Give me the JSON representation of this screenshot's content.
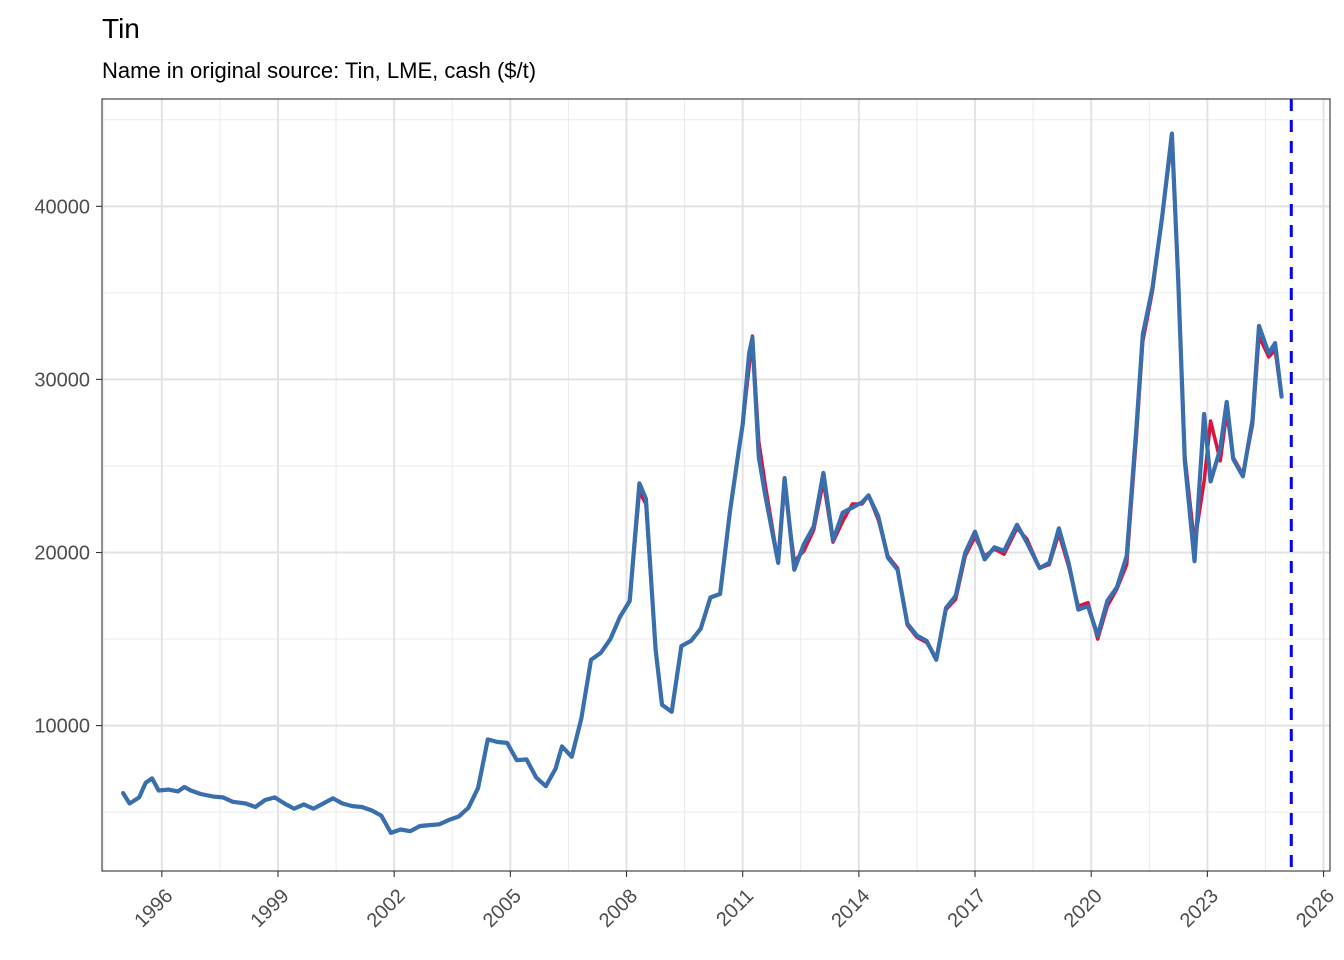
{
  "chart_data": {
    "type": "line",
    "title": "Tin",
    "subtitle": "Name in original source: Tin, LME, cash ($/t)",
    "xlabel": "",
    "ylabel": "",
    "x_range": [
      "1994-06-15",
      "2026-03-01"
    ],
    "ylim": [
      1600,
      46200
    ],
    "x_ticks": [
      "1996",
      "1999",
      "2002",
      "2005",
      "2008",
      "2011",
      "2014",
      "2017",
      "2020",
      "2023",
      "2026"
    ],
    "y_ticks": [
      "10000",
      "20000",
      "30000",
      "40000"
    ],
    "grid": true,
    "legend": "none",
    "vline": {
      "x": "2025-03-01",
      "style": "dashed",
      "color": "#0000ff"
    },
    "series": [
      {
        "color": "#dc143c",
        "points": [
          [
            "1995-01",
            6100
          ],
          [
            "1995-03",
            5500
          ],
          [
            "1995-06",
            5850
          ],
          [
            "1995-08",
            6700
          ],
          [
            "1995-10",
            6950
          ],
          [
            "1995-12",
            6250
          ],
          [
            "1996-03",
            6300
          ],
          [
            "1996-06",
            6200
          ],
          [
            "1996-08",
            6450
          ],
          [
            "1996-10",
            6250
          ],
          [
            "1997-01",
            6050
          ],
          [
            "1997-05",
            5900
          ],
          [
            "1997-08",
            5850
          ],
          [
            "1997-11",
            5600
          ],
          [
            "1998-03",
            5500
          ],
          [
            "1998-06",
            5300
          ],
          [
            "1998-09",
            5700
          ],
          [
            "1998-12",
            5850
          ],
          [
            "1999-03",
            5500
          ],
          [
            "1999-06",
            5200
          ],
          [
            "1999-09",
            5450
          ],
          [
            "1999-12",
            5200
          ],
          [
            "2000-03",
            5500
          ],
          [
            "2000-06",
            5800
          ],
          [
            "2000-09",
            5500
          ],
          [
            "2000-12",
            5350
          ],
          [
            "2001-03",
            5300
          ],
          [
            "2001-06",
            5100
          ],
          [
            "2001-09",
            4800
          ],
          [
            "2001-12",
            3800
          ],
          [
            "2002-03",
            4000
          ],
          [
            "2002-06",
            3900
          ],
          [
            "2002-09",
            4200
          ],
          [
            "2002-12",
            4250
          ],
          [
            "2003-03",
            4300
          ],
          [
            "2003-06",
            4550
          ],
          [
            "2003-09",
            4750
          ],
          [
            "2003-12",
            5250
          ],
          [
            "2004-03",
            6400
          ],
          [
            "2004-06",
            9200
          ],
          [
            "2004-09",
            9050
          ],
          [
            "2004-12",
            9000
          ],
          [
            "2005-03",
            8000
          ],
          [
            "2005-06",
            8050
          ],
          [
            "2005-09",
            7000
          ],
          [
            "2005-12",
            6500
          ],
          [
            "2006-03",
            7500
          ],
          [
            "2006-05",
            8800
          ],
          [
            "2006-08",
            8200
          ],
          [
            "2006-11",
            10400
          ],
          [
            "2007-02",
            13800
          ],
          [
            "2007-05",
            14200
          ],
          [
            "2007-08",
            15000
          ],
          [
            "2007-11",
            16300
          ],
          [
            "2008-02",
            17200
          ],
          [
            "2008-05",
            23500
          ],
          [
            "2008-07",
            22800
          ],
          [
            "2008-10",
            14400
          ],
          [
            "2008-12",
            11200
          ],
          [
            "2009-03",
            10800
          ],
          [
            "2009-06",
            14600
          ],
          [
            "2009-09",
            14900
          ],
          [
            "2009-12",
            15600
          ],
          [
            "2010-03",
            17400
          ],
          [
            "2010-06",
            17600
          ],
          [
            "2010-09",
            22300
          ],
          [
            "2010-12",
            26200
          ],
          [
            "2011-01",
            27400
          ],
          [
            "2011-03",
            30700
          ],
          [
            "2011-04",
            32500
          ],
          [
            "2011-06",
            26400
          ],
          [
            "2011-08",
            23900
          ],
          [
            "2011-12",
            19400
          ],
          [
            "2012-02",
            23900
          ],
          [
            "2012-05",
            19500
          ],
          [
            "2012-08",
            20100
          ],
          [
            "2012-11",
            21300
          ],
          [
            "2013-02",
            24100
          ],
          [
            "2013-05",
            20600
          ],
          [
            "2013-08",
            21800
          ],
          [
            "2013-11",
            22800
          ],
          [
            "2014-02",
            22800
          ],
          [
            "2014-04",
            23300
          ],
          [
            "2014-07",
            21900
          ],
          [
            "2014-10",
            19800
          ],
          [
            "2015-01",
            19100
          ],
          [
            "2015-04",
            15800
          ],
          [
            "2015-07",
            15100
          ],
          [
            "2015-10",
            14800
          ],
          [
            "2016-01",
            13900
          ],
          [
            "2016-04",
            16700
          ],
          [
            "2016-07",
            17300
          ],
          [
            "2016-10",
            19800
          ],
          [
            "2017-01",
            20900
          ],
          [
            "2017-04",
            19800
          ],
          [
            "2017-07",
            20200
          ],
          [
            "2017-10",
            19900
          ],
          [
            "2018-02",
            21400
          ],
          [
            "2018-05",
            20800
          ],
          [
            "2018-09",
            19100
          ],
          [
            "2018-12",
            19300
          ],
          [
            "2019-03",
            21100
          ],
          [
            "2019-06",
            19200
          ],
          [
            "2019-09",
            16900
          ],
          [
            "2019-12",
            17100
          ],
          [
            "2020-03",
            15000
          ],
          [
            "2020-06",
            16900
          ],
          [
            "2020-09",
            17900
          ],
          [
            "2020-12",
            19300
          ],
          [
            "2021-03",
            26700
          ],
          [
            "2021-05",
            32200
          ],
          [
            "2021-08",
            35100
          ],
          [
            "2021-11",
            39500
          ],
          [
            "2022-02",
            43800
          ],
          [
            "2022-04",
            35800
          ],
          [
            "2022-06",
            25600
          ],
          [
            "2022-09",
            20500
          ],
          [
            "2022-12",
            24100
          ],
          [
            "2023-02",
            27600
          ],
          [
            "2023-05",
            25300
          ],
          [
            "2023-07",
            28100
          ],
          [
            "2023-09",
            25500
          ],
          [
            "2023-12",
            24500
          ],
          [
            "2024-03",
            27400
          ],
          [
            "2024-05",
            32500
          ],
          [
            "2024-08",
            31300
          ],
          [
            "2024-10",
            31700
          ],
          [
            "2024-12",
            29000
          ]
        ]
      },
      {
        "color": "#3a6fad",
        "points": [
          [
            "1995-01",
            6100
          ],
          [
            "1995-03",
            5500
          ],
          [
            "1995-06",
            5850
          ],
          [
            "1995-08",
            6700
          ],
          [
            "1995-10",
            6950
          ],
          [
            "1995-12",
            6250
          ],
          [
            "1996-03",
            6300
          ],
          [
            "1996-06",
            6200
          ],
          [
            "1996-08",
            6450
          ],
          [
            "1996-10",
            6250
          ],
          [
            "1997-01",
            6050
          ],
          [
            "1997-05",
            5900
          ],
          [
            "1997-08",
            5850
          ],
          [
            "1997-11",
            5600
          ],
          [
            "1998-03",
            5500
          ],
          [
            "1998-06",
            5300
          ],
          [
            "1998-09",
            5700
          ],
          [
            "1998-12",
            5850
          ],
          [
            "1999-03",
            5500
          ],
          [
            "1999-06",
            5200
          ],
          [
            "1999-09",
            5450
          ],
          [
            "1999-12",
            5200
          ],
          [
            "2000-03",
            5500
          ],
          [
            "2000-06",
            5800
          ],
          [
            "2000-09",
            5500
          ],
          [
            "2000-12",
            5350
          ],
          [
            "2001-03",
            5300
          ],
          [
            "2001-06",
            5100
          ],
          [
            "2001-09",
            4800
          ],
          [
            "2001-12",
            3800
          ],
          [
            "2002-03",
            4000
          ],
          [
            "2002-06",
            3900
          ],
          [
            "2002-09",
            4200
          ],
          [
            "2002-12",
            4250
          ],
          [
            "2003-03",
            4300
          ],
          [
            "2003-06",
            4550
          ],
          [
            "2003-09",
            4750
          ],
          [
            "2003-12",
            5250
          ],
          [
            "2004-03",
            6400
          ],
          [
            "2004-06",
            9200
          ],
          [
            "2004-09",
            9050
          ],
          [
            "2004-12",
            9000
          ],
          [
            "2005-03",
            8000
          ],
          [
            "2005-06",
            8050
          ],
          [
            "2005-09",
            7000
          ],
          [
            "2005-12",
            6500
          ],
          [
            "2006-03",
            7500
          ],
          [
            "2006-05",
            8800
          ],
          [
            "2006-08",
            8200
          ],
          [
            "2006-11",
            10400
          ],
          [
            "2007-02",
            13800
          ],
          [
            "2007-05",
            14200
          ],
          [
            "2007-08",
            15000
          ],
          [
            "2007-11",
            16300
          ],
          [
            "2008-02",
            17200
          ],
          [
            "2008-05",
            24000
          ],
          [
            "2008-07",
            23100
          ],
          [
            "2008-10",
            14400
          ],
          [
            "2008-12",
            11200
          ],
          [
            "2009-03",
            10800
          ],
          [
            "2009-06",
            14600
          ],
          [
            "2009-09",
            14900
          ],
          [
            "2009-12",
            15600
          ],
          [
            "2010-03",
            17400
          ],
          [
            "2010-06",
            17600
          ],
          [
            "2010-09",
            22300
          ],
          [
            "2010-12",
            26200
          ],
          [
            "2011-01",
            27400
          ],
          [
            "2011-03",
            31500
          ],
          [
            "2011-04",
            32400
          ],
          [
            "2011-06",
            25500
          ],
          [
            "2011-08",
            23300
          ],
          [
            "2011-12",
            19400
          ],
          [
            "2012-02",
            24300
          ],
          [
            "2012-05",
            19000
          ],
          [
            "2012-08",
            20500
          ],
          [
            "2012-11",
            21500
          ],
          [
            "2013-02",
            24600
          ],
          [
            "2013-05",
            20700
          ],
          [
            "2013-08",
            22300
          ],
          [
            "2013-11",
            22600
          ],
          [
            "2014-02",
            22900
          ],
          [
            "2014-04",
            23300
          ],
          [
            "2014-07",
            22100
          ],
          [
            "2014-10",
            19700
          ],
          [
            "2015-01",
            19000
          ],
          [
            "2015-04",
            15900
          ],
          [
            "2015-07",
            15200
          ],
          [
            "2015-10",
            14900
          ],
          [
            "2016-01",
            13800
          ],
          [
            "2016-04",
            16800
          ],
          [
            "2016-07",
            17500
          ],
          [
            "2016-10",
            20000
          ],
          [
            "2017-01",
            21200
          ],
          [
            "2017-04",
            19600
          ],
          [
            "2017-07",
            20300
          ],
          [
            "2017-10",
            20100
          ],
          [
            "2018-02",
            21600
          ],
          [
            "2018-05",
            20600
          ],
          [
            "2018-09",
            19100
          ],
          [
            "2018-12",
            19400
          ],
          [
            "2019-03",
            21400
          ],
          [
            "2019-06",
            19400
          ],
          [
            "2019-09",
            16700
          ],
          [
            "2019-12",
            16900
          ],
          [
            "2020-03",
            15200
          ],
          [
            "2020-06",
            17200
          ],
          [
            "2020-09",
            18000
          ],
          [
            "2020-12",
            19800
          ],
          [
            "2021-03",
            27200
          ],
          [
            "2021-05",
            32600
          ],
          [
            "2021-08",
            35300
          ],
          [
            "2021-11",
            39400
          ],
          [
            "2022-02",
            44200
          ],
          [
            "2022-04",
            35600
          ],
          [
            "2022-06",
            25300
          ],
          [
            "2022-09",
            19500
          ],
          [
            "2022-12",
            28000
          ],
          [
            "2023-02",
            24100
          ],
          [
            "2023-05",
            26000
          ],
          [
            "2023-07",
            28700
          ],
          [
            "2023-09",
            25400
          ],
          [
            "2023-12",
            24400
          ],
          [
            "2024-03",
            27700
          ],
          [
            "2024-05",
            33100
          ],
          [
            "2024-08",
            31500
          ],
          [
            "2024-10",
            32100
          ],
          [
            "2024-12",
            29000
          ]
        ]
      }
    ]
  }
}
